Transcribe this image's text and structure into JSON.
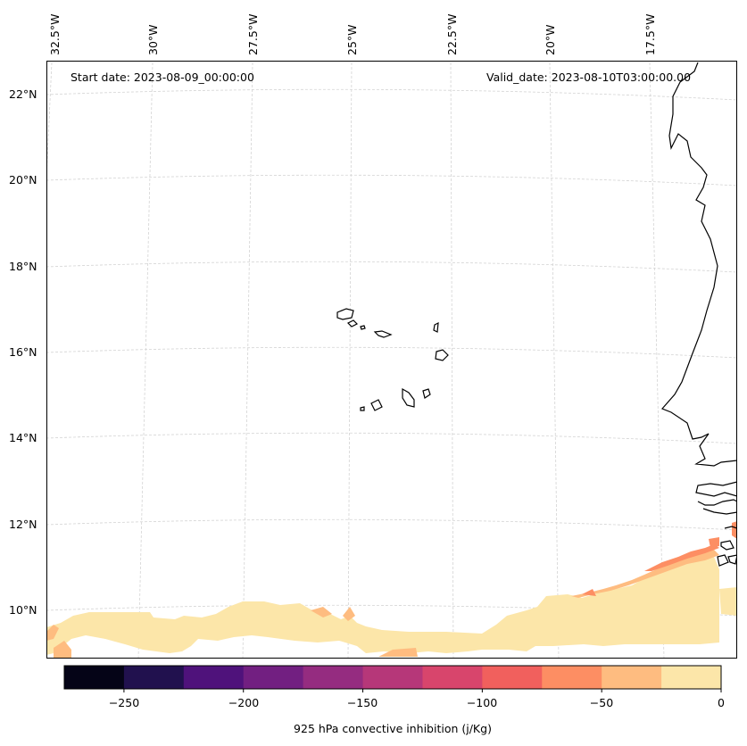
{
  "map": {
    "start_date": "Start date: 2023-08-09_00:00:00",
    "valid_date": "Valid_date: 2023-08-10T03:00:00.00",
    "lon_labels": [
      "32.5°W",
      "30°W",
      "27.5°W",
      "25°W",
      "22.5°W",
      "20°W",
      "17.5°W"
    ],
    "lat_labels": [
      "22°N",
      "20°N",
      "18°N",
      "16°N",
      "14°N",
      "12°N",
      "10°N"
    ]
  },
  "colorbar": {
    "label": "925 hPa convective inhibition (j/Kg)",
    "tick_labels": [
      "−250",
      "−200",
      "−150",
      "−100",
      "−50",
      "0"
    ],
    "min": -275,
    "max": 0,
    "colors": [
      "#050417",
      "#21114e",
      "#4f127b",
      "#721f81",
      "#952c80",
      "#b63779",
      "#d8456c",
      "#f1605d",
      "#fd8e63",
      "#febc80",
      "#fce6a9"
    ]
  },
  "colors": {
    "cin_0_to_25": "#fce6a9",
    "cin_25_to_50": "#febc80",
    "cin_50_to_75": "#fd8e63",
    "grid": "#d3d3d3",
    "coast": "#000000"
  }
}
